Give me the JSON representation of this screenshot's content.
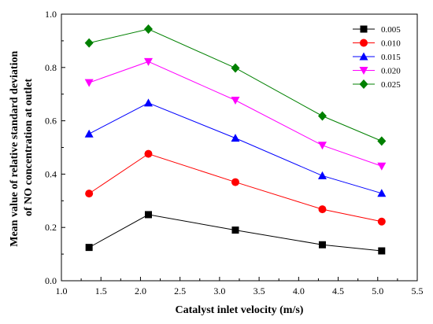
{
  "chart_data": {
    "type": "line",
    "title": "",
    "xlabel": "Catalyst inlet velocity (m/s)",
    "ylabel_lines": [
      "Mean value of relative standard deviation",
      "of NO concentration at outlet"
    ],
    "xlim": [
      1.0,
      5.5
    ],
    "ylim": [
      0.0,
      1.0
    ],
    "xticks": [
      "1.0",
      "1.5",
      "2.0",
      "2.5",
      "3.0",
      "3.5",
      "4.0",
      "4.5",
      "5.0",
      "5.5"
    ],
    "yticks": [
      "0.0",
      "0.2",
      "0.4",
      "0.6",
      "0.8",
      "1.0"
    ],
    "grid": false,
    "legend_position": "top-right",
    "x": [
      1.35,
      2.1,
      3.2,
      4.3,
      5.05
    ],
    "series": [
      {
        "name": "0.005",
        "color": "#000000",
        "marker": "square",
        "values": [
          0.125,
          0.248,
          0.19,
          0.135,
          0.112
        ]
      },
      {
        "name": "0.010",
        "color": "#ff0000",
        "marker": "circle",
        "values": [
          0.327,
          0.476,
          0.37,
          0.268,
          0.222
        ]
      },
      {
        "name": "0.015",
        "color": "#0000ff",
        "marker": "triangle-up",
        "values": [
          0.551,
          0.667,
          0.535,
          0.394,
          0.328
        ]
      },
      {
        "name": "0.020",
        "color": "#ff00ff",
        "marker": "triangle-down",
        "values": [
          0.743,
          0.822,
          0.677,
          0.508,
          0.43
        ]
      },
      {
        "name": "0.025",
        "color": "#008000",
        "marker": "diamond",
        "values": [
          0.892,
          0.944,
          0.798,
          0.618,
          0.524
        ]
      }
    ]
  }
}
